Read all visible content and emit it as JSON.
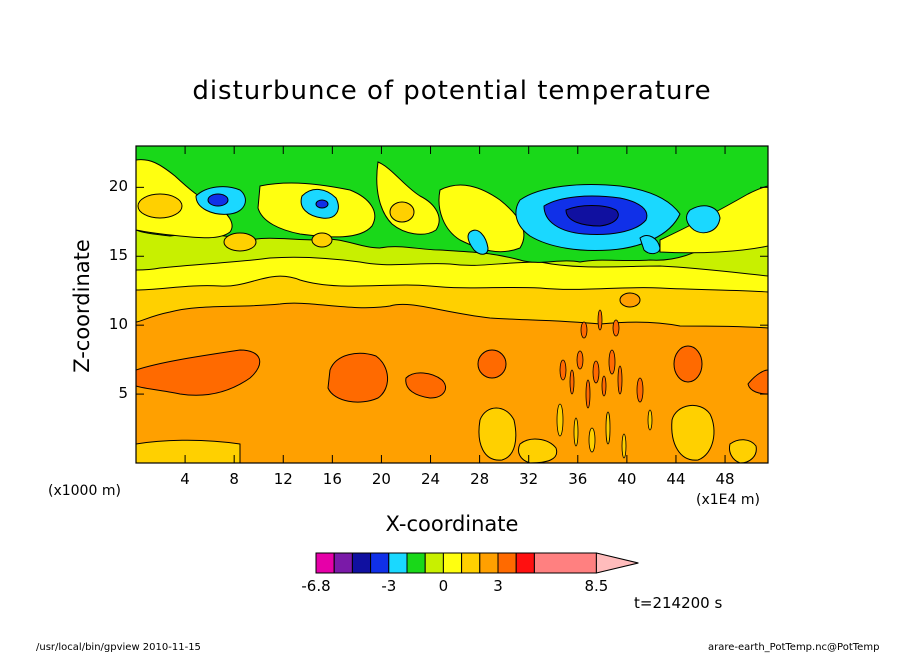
{
  "footer": {
    "left": "/usr/local/bin/gpview   2010-11-15",
    "right": "arare-earth_PotTemp.nc@PotTemp"
  },
  "chart_data": {
    "type": "heatmap",
    "title": "disturbunce of potential temperature",
    "xlabel": "X-coordinate",
    "ylabel": "Z-coordinate",
    "x_units": "(x1E4 m)",
    "y_units": "(x1000 m)",
    "xlim": [
      0,
      51.5
    ],
    "ylim": [
      0,
      23
    ],
    "x_ticks": [
      4,
      8,
      12,
      16,
      20,
      24,
      28,
      32,
      36,
      40,
      44,
      48
    ],
    "y_ticks": [
      5,
      10,
      15,
      20
    ],
    "time_label": "t=214200 s",
    "colorbar": {
      "labels": [
        {
          "value": -6.8,
          "text": "-6.8"
        },
        {
          "value": -3,
          "text": "-3"
        },
        {
          "value": 0,
          "text": "0"
        },
        {
          "value": 3,
          "text": "3"
        },
        {
          "value": 8.5,
          "text": "8.5"
        }
      ],
      "levels": [
        -6.8,
        -5.8,
        -4.8,
        -3.8,
        -3,
        -2,
        -1,
        0,
        1,
        2,
        3,
        4,
        5,
        8.5
      ],
      "colors": [
        "#e600a8",
        "#7a1aa8",
        "#1010a0",
        "#1030e8",
        "#1ad8ff",
        "#19d819",
        "#c8f000",
        "#ffff10",
        "#ffd000",
        "#ffa000",
        "#ff6a00",
        "#ff1010",
        "#ff8080"
      ],
      "extension_color": "#ffbcbc"
    },
    "layers": [
      {
        "name": "band-0-9",
        "z_range": [
          0,
          9.8
        ],
        "value_range": [
          1,
          2
        ]
      },
      {
        "name": "band-9-12",
        "z_range": [
          9.8,
          12.5
        ],
        "value_range": [
          0,
          1
        ]
      },
      {
        "name": "band-12-14",
        "z_range": [
          12.5,
          14.5
        ],
        "value_range": [
          -1,
          0
        ]
      },
      {
        "name": "band-14-23",
        "z_range": [
          14.5,
          23
        ],
        "value_range": [
          -3,
          -1
        ]
      }
    ],
    "features": [
      {
        "type": "warm-blob",
        "x": 6,
        "z": 6.4,
        "value": 2.5
      },
      {
        "type": "warm-blob",
        "x": 17,
        "z": 6,
        "value": 2.5
      },
      {
        "type": "warm-blob",
        "x": 24,
        "z": 6,
        "value": 2.5
      },
      {
        "type": "warm-blob",
        "x": 30,
        "z": 7,
        "value": 2.5
      },
      {
        "type": "warm-blob",
        "x": 43,
        "z": 7.5,
        "value": 2.5
      },
      {
        "type": "cool-blob",
        "x": 28.5,
        "z": 2.5,
        "value": 0.5
      },
      {
        "type": "cool-blob",
        "x": 44,
        "z": 2.5,
        "value": 0.5
      },
      {
        "type": "cold-core",
        "x": 37,
        "z": 18,
        "value": -5
      }
    ]
  }
}
